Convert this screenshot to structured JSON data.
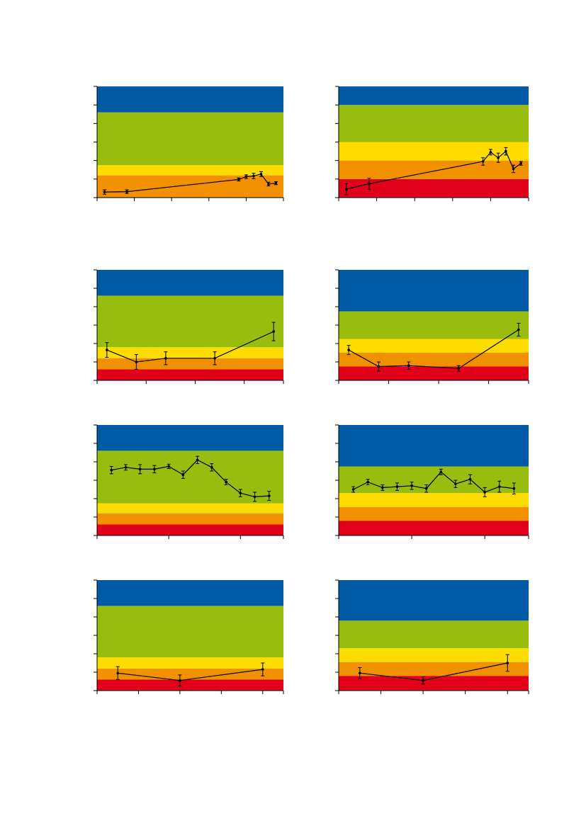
{
  "colors": {
    "blue": "#005aa6",
    "green": "#98bd0e",
    "yellow": "#fedc00",
    "orange": "#f29100",
    "red": "#e3001b",
    "line": "#000000"
  },
  "chart_data": [
    {
      "type": "line",
      "ylim": [
        0,
        6
      ],
      "yticks": [
        0,
        1,
        2,
        3,
        4,
        5,
        6
      ],
      "xlim": [
        0,
        25
      ],
      "xticks": [
        0,
        5,
        10,
        15,
        20,
        25
      ],
      "bands": [
        [
          0,
          0.6,
          "red"
        ],
        [
          0,
          1.2,
          "orange"
        ],
        [
          1.2,
          1.75,
          "yellow"
        ],
        [
          1.75,
          4.6,
          "green"
        ],
        [
          4.6,
          6,
          "blue"
        ]
      ],
      "x": [
        1,
        4,
        19,
        20,
        21,
        22,
        23,
        24
      ],
      "y": [
        0.3,
        0.32,
        0.98,
        1.13,
        1.17,
        1.27,
        0.73,
        0.78
      ],
      "err": [
        0.12,
        0.1,
        0.08,
        0.1,
        0.15,
        0.13,
        0.1,
        0.08
      ]
    },
    {
      "type": "line",
      "ylim": [
        0,
        6
      ],
      "yticks": [
        0,
        1,
        2,
        3,
        4,
        5,
        6
      ],
      "xlim": [
        0,
        25
      ],
      "xticks": [
        0,
        5,
        10,
        15,
        20,
        25
      ],
      "bands": [
        [
          0,
          1,
          "red"
        ],
        [
          1,
          2,
          "orange"
        ],
        [
          2,
          3,
          "yellow"
        ],
        [
          3,
          5,
          "green"
        ],
        [
          5,
          6,
          "blue"
        ]
      ],
      "x": [
        1,
        4,
        19,
        20,
        21,
        22,
        23,
        24
      ],
      "y": [
        0.45,
        0.75,
        1.95,
        2.45,
        2.15,
        2.5,
        1.55,
        1.85
      ],
      "err": [
        0.3,
        0.3,
        0.2,
        0.15,
        0.25,
        0.2,
        0.2,
        0.1
      ]
    },
    {
      "type": "line",
      "ylim": [
        0,
        6
      ],
      "yticks": [
        0,
        1,
        2,
        3,
        4,
        5,
        6
      ],
      "xlim": [
        0,
        19
      ],
      "xticks": [
        0,
        5,
        10,
        15,
        19
      ],
      "bands": [
        [
          0,
          0.6,
          "red"
        ],
        [
          0.6,
          1.2,
          "orange"
        ],
        [
          1.2,
          1.8,
          "yellow"
        ],
        [
          1.8,
          4.6,
          "green"
        ],
        [
          4.6,
          6,
          "blue"
        ]
      ],
      "x": [
        1,
        4,
        7,
        12,
        18
      ],
      "y": [
        1.65,
        1.0,
        1.2,
        1.2,
        2.65
      ],
      "err": [
        0.4,
        0.4,
        0.35,
        0.35,
        0.5
      ]
    },
    {
      "type": "line",
      "ylim": [
        0,
        6
      ],
      "yticks": [
        0,
        1,
        2,
        3,
        4,
        5,
        6
      ],
      "xlim": [
        0,
        19
      ],
      "xticks": [
        0,
        5,
        10,
        15,
        19
      ],
      "bands": [
        [
          0,
          0.75,
          "red"
        ],
        [
          0.75,
          1.5,
          "orange"
        ],
        [
          1.5,
          2.25,
          "yellow"
        ],
        [
          2.25,
          3.75,
          "green"
        ],
        [
          3.75,
          6,
          "blue"
        ]
      ],
      "x": [
        1,
        4,
        7,
        12,
        18
      ],
      "y": [
        1.65,
        0.75,
        0.8,
        0.65,
        2.75
      ],
      "err": [
        0.25,
        0.25,
        0.2,
        0.15,
        0.35
      ]
    },
    {
      "type": "line",
      "ylim": [
        0,
        6
      ],
      "yticks": [
        0,
        1,
        2,
        3,
        4,
        5,
        6
      ],
      "xlim": [
        0,
        13
      ],
      "xticks": [
        0,
        5,
        10,
        13
      ],
      "bands": [
        [
          0,
          0.6,
          "red"
        ],
        [
          0.6,
          1.2,
          "orange"
        ],
        [
          1.2,
          1.75,
          "yellow"
        ],
        [
          1.75,
          4.6,
          "green"
        ],
        [
          4.6,
          6,
          "blue"
        ]
      ],
      "x": [
        1,
        2,
        3,
        4,
        5,
        6,
        7,
        8,
        9,
        10,
        11,
        12
      ],
      "y": [
        3.55,
        3.7,
        3.6,
        3.6,
        3.75,
        3.3,
        4.1,
        3.7,
        2.9,
        2.3,
        2.1,
        2.15
      ],
      "err": [
        0.2,
        0.15,
        0.25,
        0.2,
        0.12,
        0.2,
        0.2,
        0.2,
        0.15,
        0.2,
        0.25,
        0.25
      ]
    },
    {
      "type": "line",
      "ylim": [
        0,
        6
      ],
      "yticks": [
        0,
        1,
        2,
        3,
        4,
        5,
        6
      ],
      "xlim": [
        0,
        13
      ],
      "xticks": [
        0,
        5,
        10,
        13
      ],
      "bands": [
        [
          0,
          0.8,
          "red"
        ],
        [
          0.8,
          1.55,
          "orange"
        ],
        [
          1.55,
          2.3,
          "yellow"
        ],
        [
          2.3,
          3.75,
          "green"
        ],
        [
          3.75,
          6,
          "blue"
        ]
      ],
      "x": [
        1,
        2,
        3,
        4,
        5,
        6,
        7,
        8,
        9,
        10,
        11,
        12
      ],
      "y": [
        2.5,
        2.9,
        2.6,
        2.65,
        2.7,
        2.55,
        3.45,
        2.8,
        3.05,
        2.35,
        2.65,
        2.55
      ],
      "err": [
        0.15,
        0.15,
        0.15,
        0.2,
        0.2,
        0.2,
        0.15,
        0.2,
        0.25,
        0.25,
        0.3,
        0.3
      ]
    },
    {
      "type": "line",
      "ylim": [
        0,
        6
      ],
      "yticks": [
        0,
        1,
        2,
        3,
        4,
        5,
        6
      ],
      "xlim": [
        0,
        9
      ],
      "xticks": [
        0,
        2,
        4,
        6,
        8,
        9
      ],
      "bands": [
        [
          0,
          0.6,
          "red"
        ],
        [
          0.6,
          1.2,
          "orange"
        ],
        [
          1.2,
          1.8,
          "yellow"
        ],
        [
          1.8,
          4.6,
          "green"
        ],
        [
          4.6,
          6,
          "blue"
        ]
      ],
      "x": [
        1,
        4,
        8
      ],
      "y": [
        0.95,
        0.55,
        1.15
      ],
      "err": [
        0.35,
        0.3,
        0.35
      ]
    },
    {
      "type": "line",
      "ylim": [
        0,
        6
      ],
      "yticks": [
        0,
        1,
        2,
        3,
        4,
        5,
        6
      ],
      "xlim": [
        0,
        9
      ],
      "xticks": [
        0,
        2,
        4,
        6,
        8,
        9
      ],
      "bands": [
        [
          0,
          0.8,
          "red"
        ],
        [
          0.8,
          1.55,
          "orange"
        ],
        [
          1.55,
          2.3,
          "yellow"
        ],
        [
          2.3,
          3.8,
          "green"
        ],
        [
          3.8,
          6,
          "blue"
        ]
      ],
      "x": [
        1,
        4,
        8
      ],
      "y": [
        0.95,
        0.55,
        1.5
      ],
      "err": [
        0.3,
        0.2,
        0.45
      ]
    }
  ]
}
